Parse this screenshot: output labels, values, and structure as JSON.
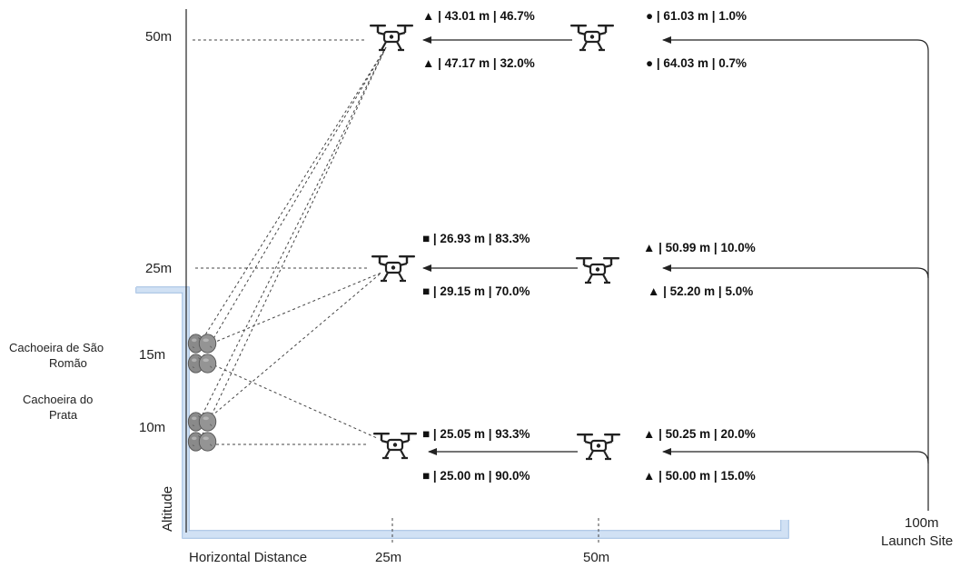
{
  "axes": {
    "altitude_ticks": [
      "50m",
      "25m",
      "15m",
      "10m"
    ],
    "distance_ticks": [
      "25m",
      "50m",
      "100m"
    ],
    "y_axis_label": "Altitude",
    "x_axis_label": "Horizontal Distance",
    "launch_label": "Launch Site"
  },
  "waterfalls": {
    "sao_romao": [
      "Cachoeira de São",
      "Romão"
    ],
    "prata": [
      "Cachoeira do",
      "Prata"
    ]
  },
  "measurements": {
    "row50": {
      "near_top": "▲ | 43.01 m | 46.7%",
      "near_bottom": "▲ | 47.17 m | 32.0%",
      "far_top": "● | 61.03 m | 1.0%",
      "far_bottom": "● | 64.03 m | 0.7%"
    },
    "row25": {
      "near_top": "■ | 26.93 m | 83.3%",
      "near_bottom": "■ | 29.15 m | 70.0%",
      "far_top": "▲ | 50.99 m | 10.0%",
      "far_bottom": "▲ | 52.20 m | 5.0%"
    },
    "row10": {
      "near_top": "■ | 25.05 m | 93.3%",
      "near_bottom": "■ | 25.00 m | 90.0%",
      "far_top": "▲ | 50.25 m | 20.0%",
      "far_bottom": "▲ | 50.00 m | 15.0%"
    }
  },
  "icons": {
    "drone": "drone-icon",
    "rock": "rock-icon"
  },
  "colors": {
    "frame_blue": "#c9dcf2",
    "frame_stroke": "#9ab8df",
    "rock": "#8a8a8a"
  }
}
